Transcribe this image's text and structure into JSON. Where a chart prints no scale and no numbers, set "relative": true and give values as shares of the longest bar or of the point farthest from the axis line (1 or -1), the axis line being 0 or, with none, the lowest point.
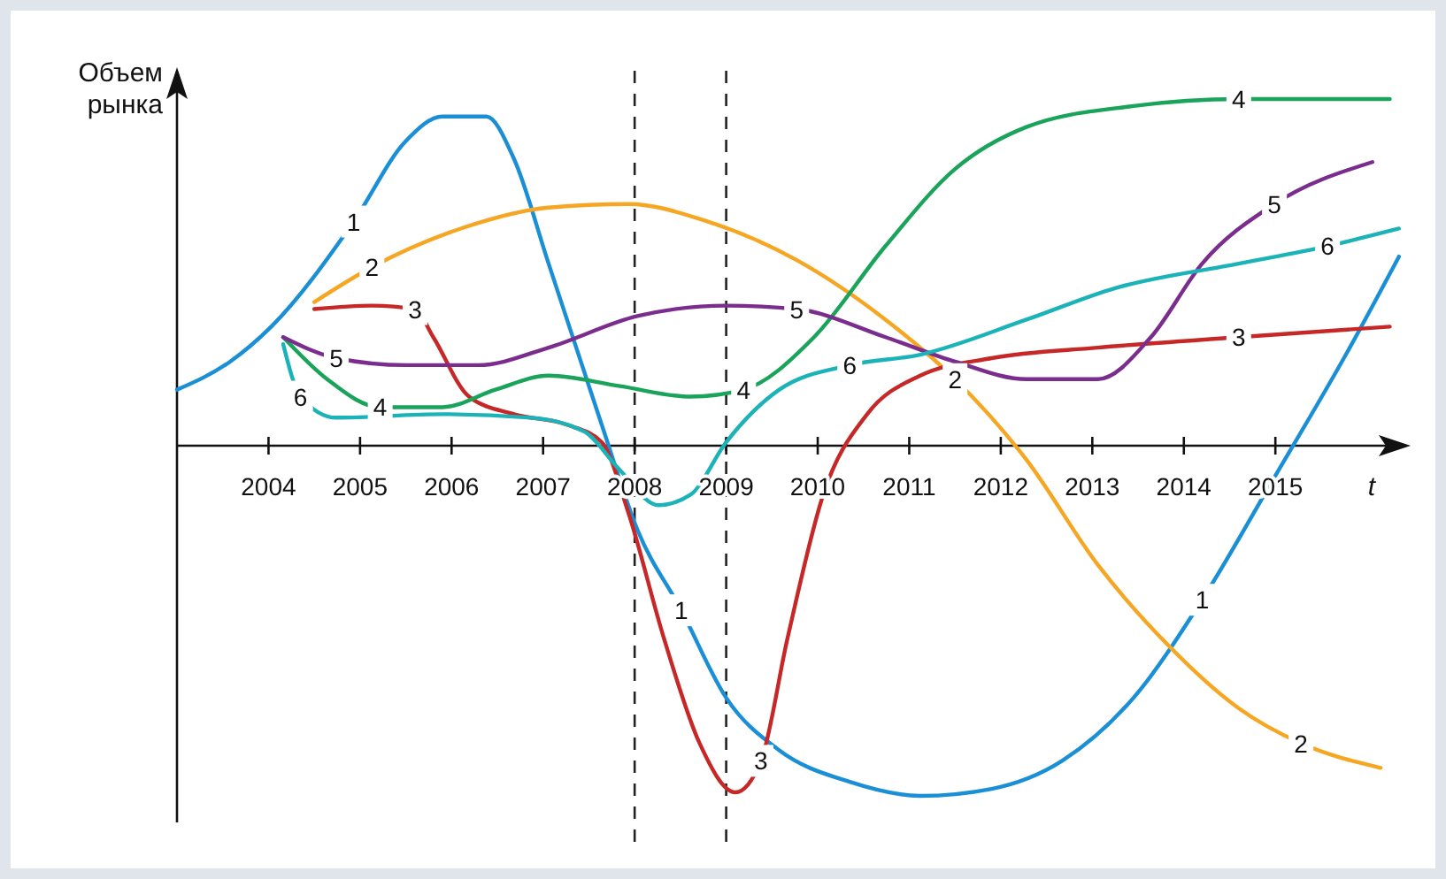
{
  "chart_data": {
    "type": "line",
    "relative": true,
    "xlabel": "t",
    "ylabel": "Объем рынка",
    "xlim": [
      2003,
      2016.4
    ],
    "xticks": [
      2004,
      2005,
      2006,
      2007,
      2008,
      2009,
      2010,
      2011,
      2012,
      2013,
      2014,
      2015
    ],
    "grid": false,
    "tick_labels": "x",
    "marker": "none",
    "line_style": "solid",
    "ref_lines": [
      {
        "axis": "x",
        "value": 2008,
        "line_style": "dashed",
        "color": "#222222"
      },
      {
        "axis": "x",
        "value": 2009,
        "line_style": "dashed",
        "color": "#222222"
      }
    ],
    "series": [
      {
        "name": "1",
        "color": "#1a8fd6",
        "x": [
          2003,
          2003.58,
          2004.03,
          2004.93,
          2005.5,
          2005.9,
          2006.38,
          2006.68,
          2007.06,
          2007.64,
          2008.03,
          2008.51,
          2009,
          2009.58,
          2010.35,
          2011.12,
          2011.9,
          2012.67,
          2013.45,
          2014.2,
          2014.99,
          2015.77,
          2016.35
        ],
        "values": [
          0.16,
          0.24,
          0.34,
          0.64,
          0.87,
          0.94,
          0.94,
          0.82,
          0.52,
          0.06,
          -0.24,
          -0.47,
          -0.72,
          -0.87,
          -0.96,
          -1,
          -0.98,
          -0.9,
          -0.72,
          -0.44,
          -0.09,
          0.26,
          0.54
        ]
      },
      {
        "name": "2",
        "color": "#f5a623",
        "x": [
          2004.5,
          2005.13,
          2006.1,
          2007.06,
          2007.93,
          2008.8,
          2009.77,
          2010.74,
          2011.5,
          2012.28,
          2013.06,
          2013.83,
          2014.6,
          2015.28,
          2016.15
        ],
        "values": [
          0.41,
          0.51,
          0.62,
          0.68,
          0.69,
          0.64,
          0.53,
          0.36,
          0.19,
          -0.04,
          -0.34,
          -0.57,
          -0.75,
          -0.85,
          -0.92
        ]
      },
      {
        "name": "3",
        "color": "#c62828",
        "x": [
          2004.5,
          2005.13,
          2005.6,
          2005.8,
          2006.19,
          2006.68,
          2007.26,
          2007.64,
          2007.93,
          2008.32,
          2008.71,
          2009.1,
          2009.38,
          2009.67,
          2010.06,
          2010.54,
          2011.12,
          2011.9,
          2013.06,
          2014.6,
          2016.25
        ],
        "values": [
          0.39,
          0.4,
          0.39,
          0.31,
          0.14,
          0.09,
          0.06,
          0.01,
          -0.19,
          -0.55,
          -0.85,
          -0.99,
          -0.9,
          -0.55,
          -0.14,
          0.09,
          0.2,
          0.25,
          0.28,
          0.31,
          0.34
        ]
      },
      {
        "name": "4",
        "color": "#1aa35a",
        "x": [
          2004.16,
          2004.64,
          2005.22,
          2005.9,
          2006.48,
          2007.06,
          2007.84,
          2008.61,
          2009.19,
          2009.96,
          2010.74,
          2011.5,
          2012.28,
          2013.45,
          2014.6,
          2016.25
        ],
        "values": [
          0.31,
          0.19,
          0.11,
          0.11,
          0.16,
          0.2,
          0.17,
          0.14,
          0.16,
          0.31,
          0.57,
          0.79,
          0.91,
          0.97,
          0.99,
          0.99
        ]
      },
      {
        "name": "5",
        "color": "#7b2d8e",
        "x": [
          2004.16,
          2004.74,
          2005.5,
          2006.29,
          2007.06,
          2008.03,
          2009,
          2009.77,
          2010.74,
          2011.5,
          2012.28,
          2013.06,
          2013.64,
          2014.2,
          2014.99,
          2016.06
        ],
        "values": [
          0.31,
          0.25,
          0.23,
          0.23,
          0.28,
          0.37,
          0.4,
          0.39,
          0.31,
          0.24,
          0.19,
          0.19,
          0.31,
          0.52,
          0.69,
          0.81
        ]
      },
      {
        "name": "6",
        "color": "#1bb3b8",
        "x": [
          2004.16,
          2004.35,
          2004.74,
          2005.9,
          2006.87,
          2007.45,
          2007.84,
          2008.26,
          2008.61,
          2009,
          2009.58,
          2010.35,
          2011.12,
          2012.28,
          2013.25,
          2014.6,
          2015.57,
          2016.35
        ],
        "values": [
          0.29,
          0.14,
          0.08,
          0.09,
          0.08,
          0.04,
          -0.07,
          -0.17,
          -0.14,
          0.01,
          0.16,
          0.23,
          0.26,
          0.36,
          0.45,
          0.52,
          0.57,
          0.62
        ]
      }
    ]
  }
}
